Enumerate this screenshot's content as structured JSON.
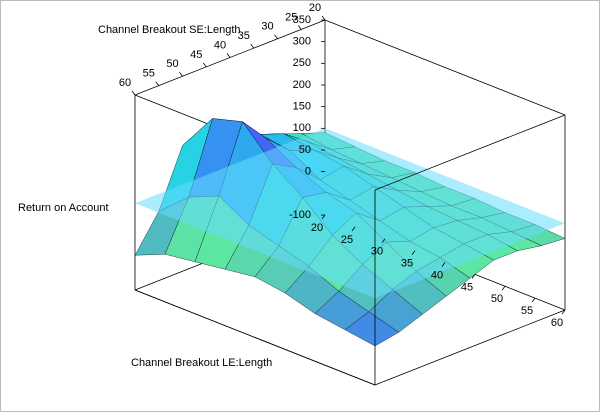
{
  "chart_data": {
    "type": "surface",
    "x_label": "Channel Breakout LE:Length",
    "y_label": "Channel Breakout SE:Length",
    "z_label": "Return on Account",
    "x": [
      20,
      25,
      30,
      35,
      40,
      45,
      50,
      55,
      60
    ],
    "y": [
      20,
      25,
      30,
      35,
      40,
      45,
      50,
      55,
      60
    ],
    "z": [
      [
        90,
        110,
        130,
        150,
        160,
        170,
        190,
        60,
        -20
      ],
      [
        85,
        100,
        140,
        180,
        200,
        220,
        280,
        120,
        10
      ],
      [
        80,
        95,
        130,
        170,
        190,
        240,
        300,
        150,
        20
      ],
      [
        80,
        90,
        120,
        160,
        150,
        200,
        230,
        110,
        30
      ],
      [
        75,
        85,
        110,
        140,
        130,
        170,
        180,
        90,
        40
      ],
      [
        75,
        80,
        100,
        120,
        110,
        150,
        120,
        70,
        30
      ],
      [
        70,
        80,
        95,
        100,
        90,
        110,
        80,
        40,
        10
      ],
      [
        70,
        75,
        90,
        90,
        80,
        70,
        50,
        20,
        0
      ],
      [
        65,
        70,
        80,
        80,
        60,
        40,
        20,
        0,
        -10
      ]
    ],
    "xlim": [
      20,
      60
    ],
    "ylim": [
      60,
      20
    ],
    "zlim": [
      -100,
      350
    ],
    "xticks": [
      20,
      25,
      30,
      35,
      40,
      45,
      50,
      55,
      60
    ],
    "yticks": [
      60,
      55,
      50,
      45,
      40,
      35,
      30,
      25,
      20
    ],
    "zticks": [
      350,
      300,
      250,
      200,
      150,
      100,
      50,
      0,
      -100
    ],
    "colormap": [
      "#3030e8",
      "#3c7cf0",
      "#5ee8a0",
      "#22d0ea",
      "#4a4cf8",
      "#9a22e8"
    ],
    "plane_z": 100,
    "plane_color": "#66ddff"
  }
}
